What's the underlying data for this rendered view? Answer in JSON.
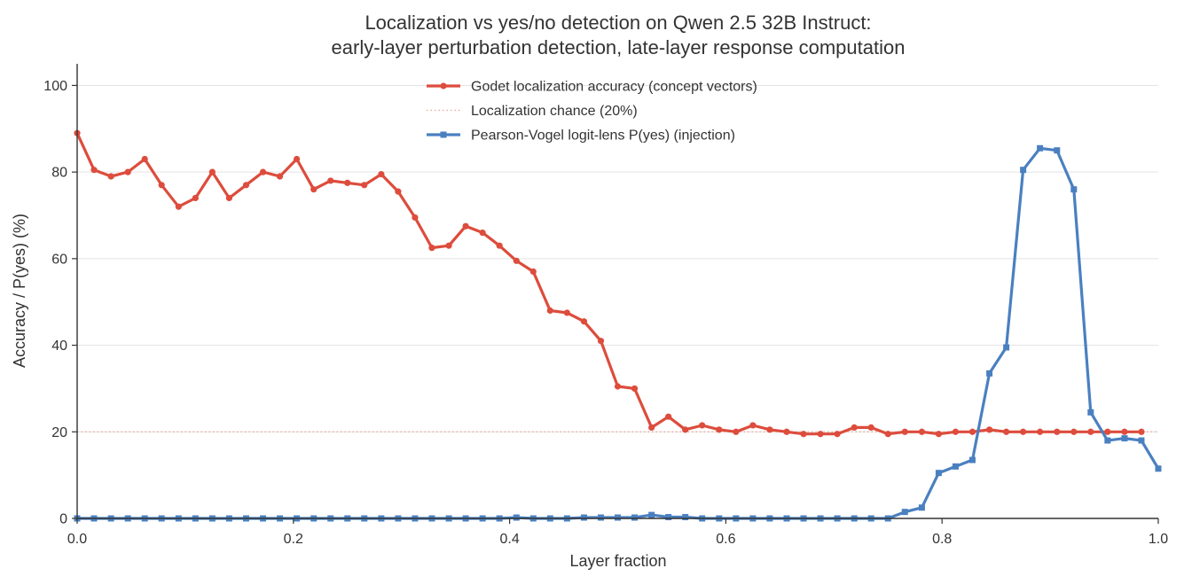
{
  "chart_data": {
    "type": "line",
    "title_line1": "Localization vs yes/no detection on Qwen 2.5 32B Instruct:",
    "title_line2": "early-layer perturbation detection, late-layer response computation",
    "xlabel": "Layer fraction",
    "ylabel": "Accuracy / P(yes) (%)",
    "xlim": [
      0,
      1
    ],
    "ylim": [
      0,
      105
    ],
    "xticks": [
      "0.0",
      "0.2",
      "0.4",
      "0.6",
      "0.8",
      "1.0"
    ],
    "yticks": [
      "0",
      "20",
      "40",
      "60",
      "80",
      "100"
    ],
    "grid": "horizontal",
    "legend_position": "top-center",
    "series": [
      {
        "name": "Godet localization accuracy (concept vectors)",
        "color": "#dd4c3c",
        "marker": "circle",
        "x": [
          0.0,
          0.0156,
          0.0313,
          0.0469,
          0.0625,
          0.0781,
          0.0938,
          0.1094,
          0.125,
          0.1406,
          0.1563,
          0.1719,
          0.1875,
          0.2031,
          0.2188,
          0.2344,
          0.25,
          0.2656,
          0.2813,
          0.2969,
          0.3125,
          0.3281,
          0.3438,
          0.3594,
          0.375,
          0.3906,
          0.4063,
          0.4219,
          0.4375,
          0.4531,
          0.4688,
          0.4844,
          0.5,
          0.5156,
          0.5313,
          0.5469,
          0.5625,
          0.5781,
          0.5938,
          0.6094,
          0.625,
          0.6406,
          0.6563,
          0.6719,
          0.6875,
          0.7031,
          0.7188,
          0.7344,
          0.75,
          0.7656,
          0.7813,
          0.7969,
          0.8125,
          0.8281,
          0.8438,
          0.8594,
          0.875,
          0.8906,
          0.9063,
          0.9219,
          0.9375,
          0.9531,
          0.9688,
          0.9844
        ],
        "y": [
          89,
          80.5,
          79,
          80,
          83,
          77,
          72,
          74,
          80,
          74,
          77,
          80,
          79,
          83,
          76,
          78,
          77.5,
          77,
          79.5,
          75.5,
          69.5,
          62.5,
          63,
          67.5,
          66,
          63,
          59.5,
          57,
          48,
          47.5,
          45.5,
          41,
          30.5,
          30,
          21,
          23.5,
          20.5,
          21.5,
          20.5,
          20,
          21.5,
          20.5,
          20,
          19.5,
          19.5,
          19.5,
          21,
          21,
          19.5,
          20,
          20,
          19.5,
          20,
          20,
          20.5,
          20,
          20,
          20,
          20,
          20,
          20,
          20,
          20,
          20
        ]
      },
      {
        "name": "Localization chance (20%)",
        "color": "#f0a090",
        "style": "dotted",
        "y_constant": 20
      },
      {
        "name": "Pearson-Vogel logit-lens P(yes) (injection)",
        "color": "#4a80c0",
        "marker": "square",
        "x": [
          0.0,
          0.0156,
          0.0313,
          0.0469,
          0.0625,
          0.0781,
          0.0938,
          0.1094,
          0.125,
          0.1406,
          0.1563,
          0.1719,
          0.1875,
          0.2031,
          0.2188,
          0.2344,
          0.25,
          0.2656,
          0.2813,
          0.2969,
          0.3125,
          0.3281,
          0.3438,
          0.3594,
          0.375,
          0.3906,
          0.4063,
          0.4219,
          0.4375,
          0.4531,
          0.4688,
          0.4844,
          0.5,
          0.5156,
          0.5313,
          0.5469,
          0.5625,
          0.5781,
          0.5938,
          0.6094,
          0.625,
          0.6406,
          0.6563,
          0.6719,
          0.6875,
          0.7031,
          0.7188,
          0.7344,
          0.75,
          0.7656,
          0.7813,
          0.7969,
          0.8125,
          0.8281,
          0.8438,
          0.8594,
          0.875,
          0.8906,
          0.9063,
          0.9219,
          0.9375,
          0.9531,
          0.9688,
          0.9844,
          1.0
        ],
        "y": [
          0,
          0,
          0,
          0,
          0,
          0,
          0,
          0,
          0,
          0,
          0,
          0,
          0,
          0,
          0,
          0,
          0,
          0,
          0,
          0,
          0,
          0,
          0,
          0,
          0,
          0,
          0.2,
          0,
          0,
          0,
          0.2,
          0.2,
          0.2,
          0.2,
          0.8,
          0.3,
          0.3,
          0,
          0,
          0,
          0,
          0,
          0,
          0,
          0,
          0,
          0,
          0,
          0,
          1.5,
          2.5,
          10.5,
          12,
          13.5,
          33.5,
          39.5,
          80.5,
          85.5,
          85,
          76,
          24.5,
          18,
          18.5,
          18,
          11.5
        ]
      }
    ]
  }
}
